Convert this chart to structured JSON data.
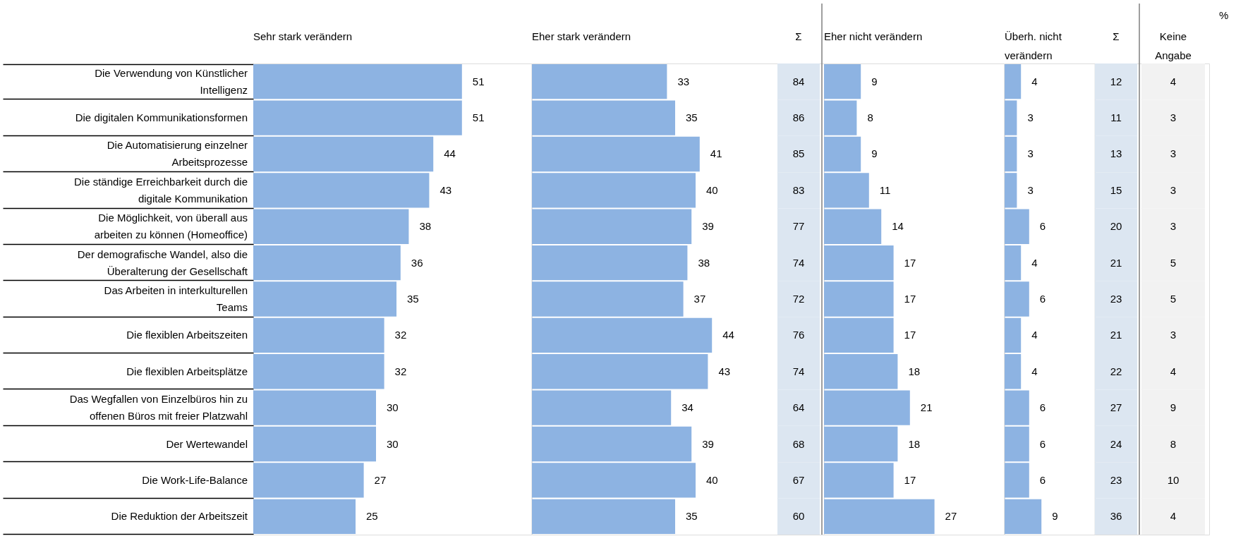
{
  "chart_data": [
    {
      "type": "bar",
      "orientation": "horizontal",
      "title": "Sehr stark verändern",
      "categories": [
        "Die Verwendung von Künstlicher Intelligenz",
        "Die digitalen Kommunikationsformen",
        "Die Automatisierung einzelner Arbeitsprozesse",
        "Die ständige Erreichbarkeit durch die digitale Kommunikation",
        "Die Möglichkeit, von überall aus arbeiten zu können (Homeoffice)",
        "Der demografische Wandel, also die Überalterung der Gesellschaft",
        "Das Arbeiten in interkulturellen Teams",
        "Die flexiblen Arbeitszeiten",
        "Die flexiblen Arbeitsplätze",
        "Das Wegfallen von Einzelbüros hin zu offenen Büros mit freier Platzwahl",
        "Der Wertewandel",
        "Die Work-Life-Balance",
        "Die Reduktion der Arbeitszeit"
      ],
      "values": [
        51,
        51,
        44,
        43,
        38,
        36,
        35,
        32,
        32,
        30,
        30,
        27,
        25
      ],
      "color": "#8db3e2",
      "xlim": [
        0,
        68
      ],
      "data_labels": true,
      "tick_labels": "y"
    },
    {
      "type": "bar",
      "orientation": "horizontal",
      "title": "Eher stark verändern",
      "categories": [
        null,
        null,
        null,
        null,
        null,
        null,
        null,
        null,
        null,
        null,
        null,
        null,
        null
      ],
      "values": [
        33,
        35,
        41,
        40,
        39,
        38,
        37,
        44,
        43,
        34,
        39,
        40,
        35
      ],
      "color": "#8db3e2",
      "xlim": [
        0,
        60
      ],
      "data_labels": true,
      "tick_labels": false
    },
    {
      "type": "other",
      "title": "Σ",
      "values": [
        84,
        86,
        85,
        83,
        77,
        74,
        72,
        76,
        74,
        64,
        68,
        67,
        60
      ],
      "color": "#dce6f1",
      "data_labels": true
    },
    {
      "type": "bar",
      "orientation": "horizontal",
      "title": "Eher nicht verändern",
      "categories": [
        null,
        null,
        null,
        null,
        null,
        null,
        null,
        null,
        null,
        null,
        null,
        null,
        null
      ],
      "values": [
        9,
        8,
        9,
        11,
        14,
        17,
        17,
        17,
        18,
        21,
        18,
        17,
        27
      ],
      "color": "#8db3e2",
      "xlim": [
        0,
        44
      ],
      "data_labels": true,
      "tick_labels": false
    },
    {
      "type": "bar",
      "orientation": "horizontal",
      "title": "Überh. nicht verändern",
      "categories": [
        null,
        null,
        null,
        null,
        null,
        null,
        null,
        null,
        null,
        null,
        null,
        null,
        null
      ],
      "values": [
        4,
        3,
        3,
        3,
        6,
        4,
        6,
        4,
        4,
        6,
        6,
        6,
        9
      ],
      "color": "#8db3e2",
      "xlim": [
        0,
        22
      ],
      "data_labels": true,
      "tick_labels": false
    },
    {
      "type": "other",
      "title": "Σ",
      "values": [
        12,
        11,
        13,
        15,
        20,
        21,
        23,
        21,
        22,
        27,
        24,
        23,
        36
      ],
      "color": "#dce6f1",
      "data_labels": true
    },
    {
      "type": "other",
      "title": "Keine Angabe",
      "values": [
        4,
        3,
        3,
        3,
        3,
        5,
        5,
        3,
        4,
        9,
        8,
        10,
        4
      ],
      "color": "#f2f2f2",
      "data_labels": true,
      "annotations": [
        "%"
      ]
    }
  ]
}
